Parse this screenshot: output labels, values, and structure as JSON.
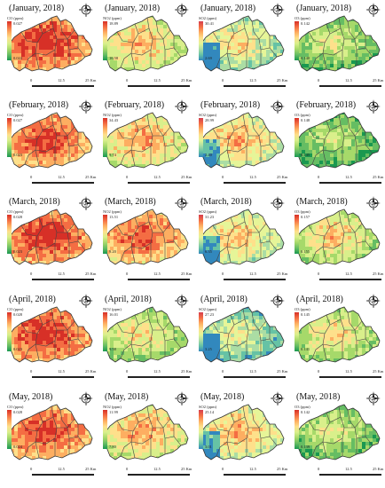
{
  "scale": {
    "labels": [
      "0",
      "12.5",
      "25 Km"
    ]
  },
  "panels": [
    {
      "title": "(January, 2018)",
      "legend_title": "CO (ppm)",
      "max": "0.027",
      "min": "0.022",
      "palette": "rdylgn",
      "heat": 0.85
    },
    {
      "title": "(January, 2018)",
      "legend_title": "NO2 (ppm)",
      "max": "18.89",
      "min": "16.58",
      "palette": "rdylgn",
      "heat": 0.55
    },
    {
      "title": "(January, 2018)",
      "legend_title": "SO2 (ppm)",
      "max": "30.41",
      "min": "2.69",
      "palette": "spectral",
      "heat": 0.45
    },
    {
      "title": "(January, 2018)",
      "legend_title": "O3 (ppm)",
      "max": "0.142",
      "min": "0.140",
      "palette": "rdylgn",
      "heat": 0.35
    },
    {
      "title": "(February, 2018)",
      "legend_title": "CO (ppm)",
      "max": "0.027",
      "min": "0.023",
      "palette": "rdylgn",
      "heat": 0.8
    },
    {
      "title": "(February, 2018)",
      "legend_title": "NO2 (ppm)",
      "max": "34.43",
      "min": "9.74",
      "palette": "rdylgn",
      "heat": 0.6
    },
    {
      "title": "(February, 2018)",
      "legend_title": "SO2 (ppm)",
      "max": "28.99",
      "min": "2.40",
      "palette": "spectral",
      "heat": 0.55
    },
    {
      "title": "(February, 2018)",
      "legend_title": "O3 (ppm)",
      "max": "0.148",
      "min": "0.145",
      "palette": "rdylgn",
      "heat": 0.3
    },
    {
      "title": "(March, 2018)",
      "legend_title": "CO (ppm)",
      "max": "0.028",
      "min": "0.023",
      "palette": "rdylgn",
      "heat": 0.85
    },
    {
      "title": "(March, 2018)",
      "legend_title": "NO2 (ppm)",
      "max": "13.51",
      "min": "9.20",
      "palette": "rdylgn",
      "heat": 0.75
    },
    {
      "title": "(March, 2018)",
      "legend_title": "SO2 (ppm)",
      "max": "31.23",
      "min": "6.35",
      "palette": "spectral",
      "heat": 0.5
    },
    {
      "title": "(March, 2018)",
      "legend_title": "O3 (ppm)",
      "max": "0.157",
      "min": "0.155",
      "palette": "rdylgn",
      "heat": 0.5
    },
    {
      "title": "(April, 2018)",
      "legend_title": "CO (ppm)",
      "max": "0.028",
      "min": "0.023",
      "palette": "rdylgn",
      "heat": 0.85
    },
    {
      "title": "(April, 2018)",
      "legend_title": "NO2 (ppm)",
      "max": "16.01",
      "min": "9.58",
      "palette": "rdylgn",
      "heat": 0.45
    },
    {
      "title": "(April, 2018)",
      "legend_title": "SO2 (ppm)",
      "max": "27.23",
      "min": "3.25",
      "palette": "spectral",
      "heat": 0.35
    },
    {
      "title": "(April, 2018)",
      "legend_title": "O3 (ppm)",
      "max": "0.145",
      "min": "0.141",
      "palette": "rdylgn",
      "heat": 0.45
    },
    {
      "title": "(May, 2018)",
      "legend_title": "CO (ppm)",
      "max": "0.028",
      "min": "0.024",
      "palette": "rdylgn",
      "heat": 0.8
    },
    {
      "title": "(May, 2018)",
      "legend_title": "NO2 (ppm)",
      "max": "11.99",
      "min": "7.80",
      "palette": "rdylgn",
      "heat": 0.6
    },
    {
      "title": "(May, 2018)",
      "legend_title": "SO2 (ppm)",
      "max": "25.14",
      "min": "3.01",
      "palette": "spectral",
      "heat": 0.55
    },
    {
      "title": "(May, 2018)",
      "legend_title": "O3 (ppm)",
      "max": "0.142",
      "min": "0.139",
      "palette": "rdylgn",
      "heat": 0.35
    }
  ]
}
